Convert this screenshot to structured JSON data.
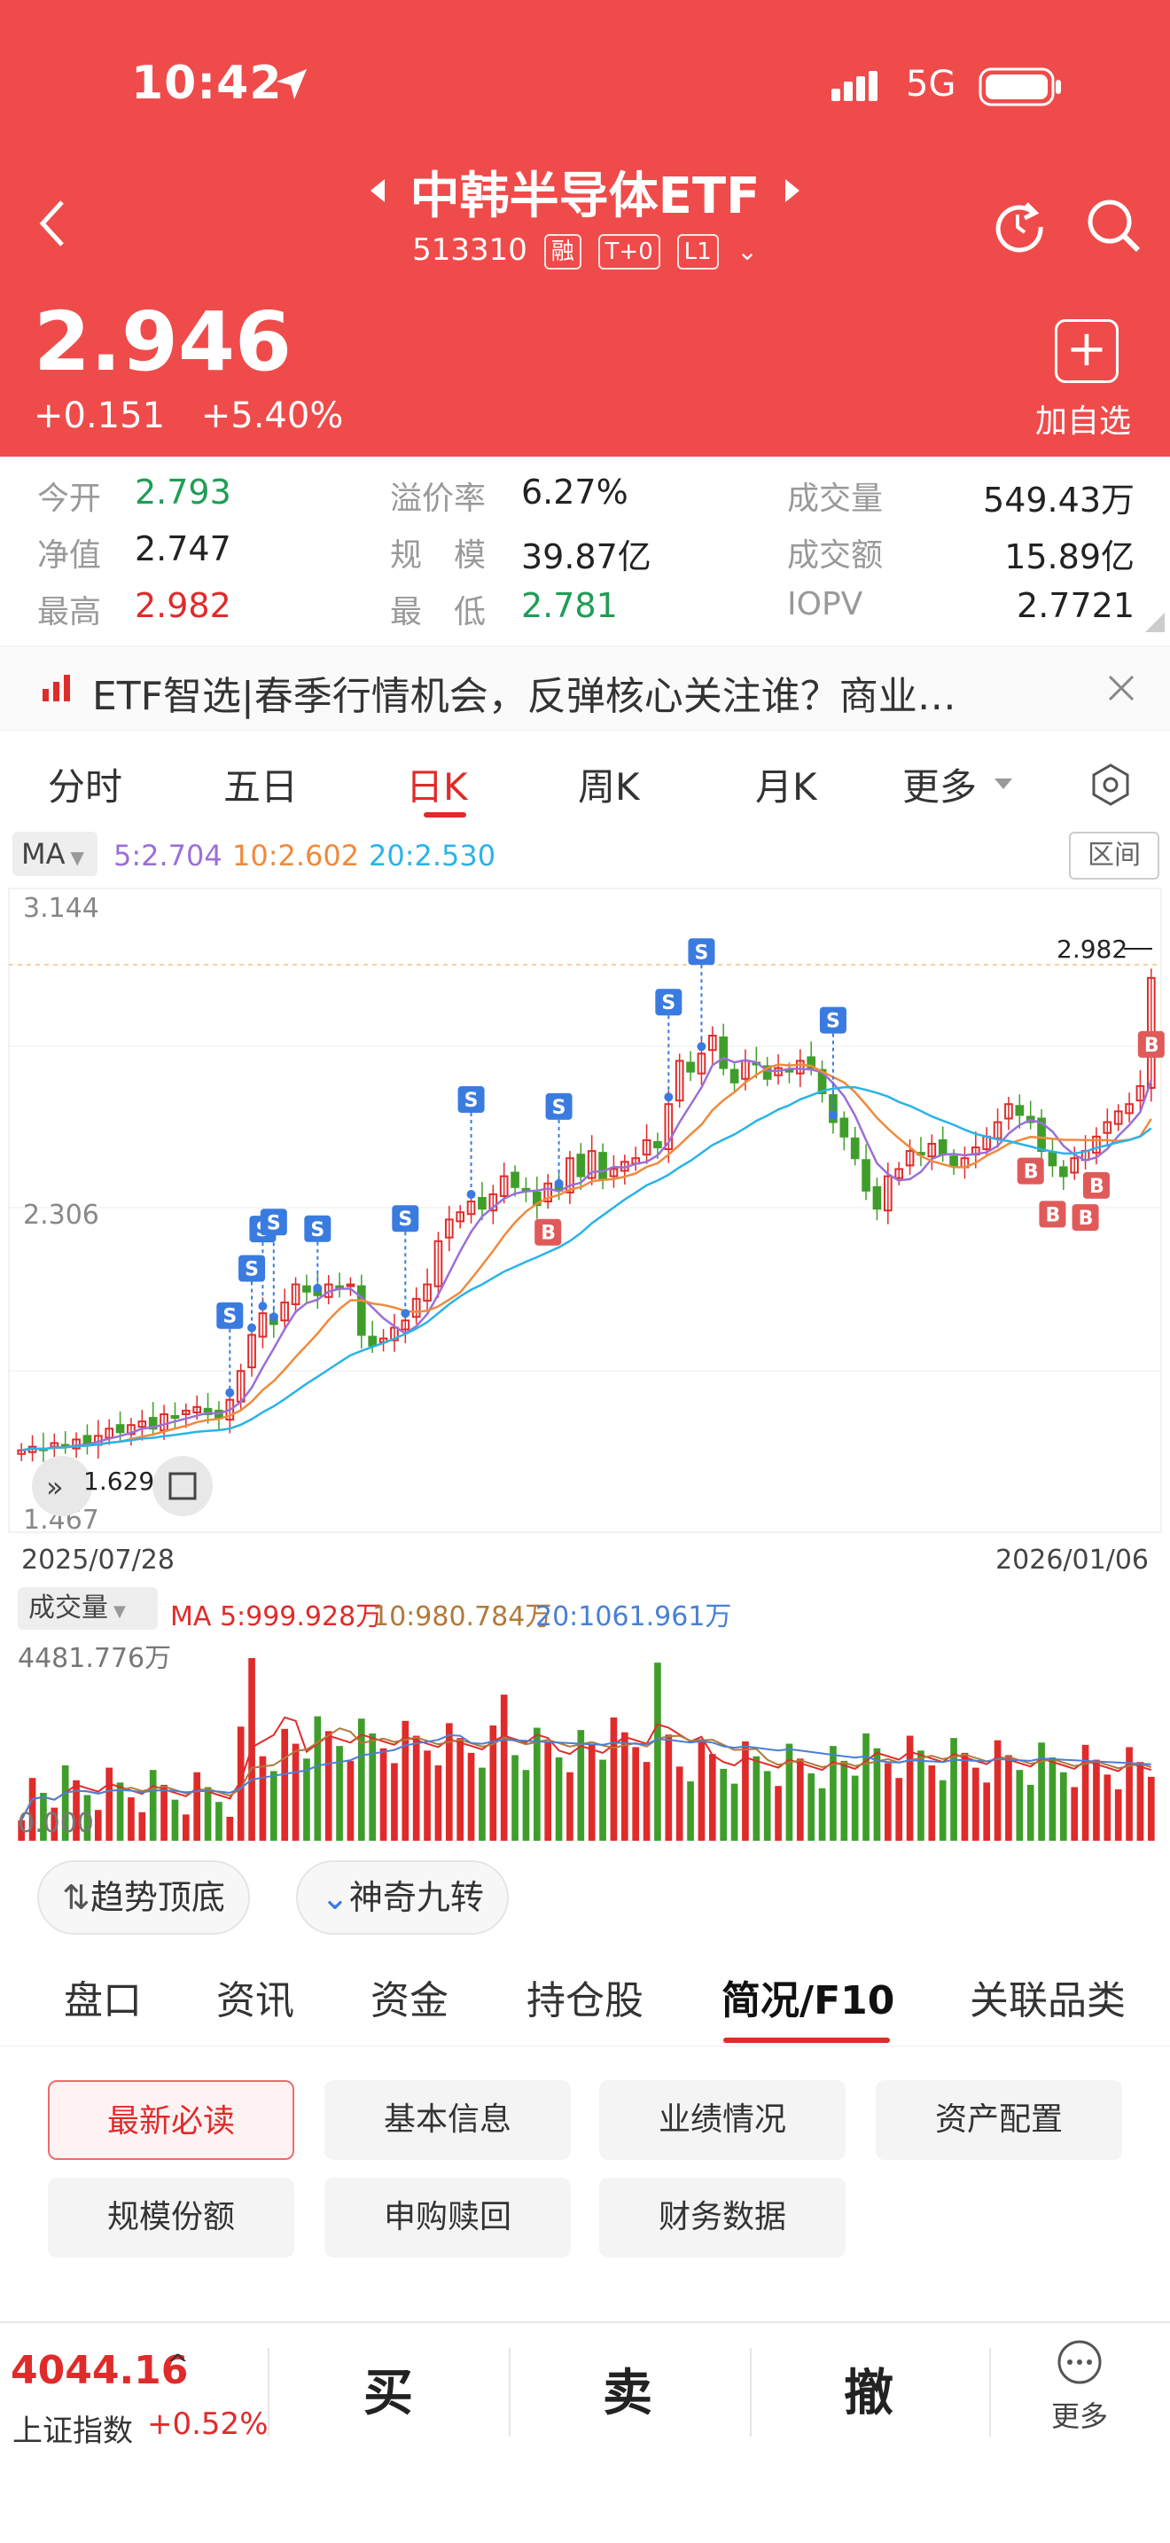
{
  "status": {
    "time": "10:42",
    "network": "5G"
  },
  "header": {
    "title": "中韩半导体ETF",
    "code": "513310",
    "tags": [
      "融",
      "T+0",
      "L1"
    ],
    "price": "2.946",
    "change": "+0.151",
    "change_pct": "+5.40%",
    "add_label": "加自选"
  },
  "stats": [
    {
      "label": "今开",
      "value": "2.793",
      "color": "green"
    },
    {
      "label": "溢价率",
      "value": "6.27%",
      "color": "dark"
    },
    {
      "label": "成交量",
      "value": "549.43万",
      "color": "dark"
    },
    {
      "label": "净值",
      "value": "2.747",
      "color": "dark"
    },
    {
      "label": "规　模",
      "value": "39.87亿",
      "color": "dark"
    },
    {
      "label": "成交额",
      "value": "15.89亿",
      "color": "dark"
    },
    {
      "label": "最高",
      "value": "2.982",
      "color": "red"
    },
    {
      "label": "最　低",
      "value": "2.781",
      "color": "green"
    },
    {
      "label": "IOPV",
      "value": "2.7721",
      "color": "dark"
    }
  ],
  "banner": {
    "text": "ETF智选|春季行情机会，反弹核心关注谁？商业…"
  },
  "chart_tabs": [
    "分时",
    "五日",
    "日K",
    "周K",
    "月K",
    "更多"
  ],
  "chart_tabs_active": "日K",
  "ma": {
    "label": "MA",
    "ma5": "5:2.704",
    "ma10": "10:2.602",
    "ma20": "20:2.530",
    "range_btn": "区间"
  },
  "chart_data": {
    "type": "candlestick",
    "y_high_label": "3.144",
    "y_mid_label": "2.306",
    "y_low_label": "1.467",
    "max_marker": "2.982",
    "min_marker": "1.629",
    "x_start": "2025/07/28",
    "x_end": "2026/01/06",
    "ylim": [
      1.467,
      3.144
    ],
    "closes": [
      1.64,
      1.65,
      1.64,
      1.66,
      1.65,
      1.67,
      1.66,
      1.68,
      1.7,
      1.69,
      1.71,
      1.72,
      1.7,
      1.74,
      1.73,
      1.75,
      1.76,
      1.74,
      1.73,
      1.78,
      1.86,
      1.96,
      2.02,
      1.99,
      2.05,
      2.1,
      2.08,
      2.07,
      2.1,
      2.09,
      2.1,
      1.96,
      1.93,
      1.95,
      1.98,
      2.0,
      2.06,
      2.1,
      2.22,
      2.28,
      2.3,
      2.33,
      2.31,
      2.35,
      2.4,
      2.37,
      2.36,
      2.32,
      2.38,
      2.36,
      2.45,
      2.4,
      2.47,
      2.39,
      2.42,
      2.44,
      2.45,
      2.5,
      2.48,
      2.6,
      2.72,
      2.69,
      2.74,
      2.79,
      2.7,
      2.66,
      2.72,
      2.71,
      2.67,
      2.7,
      2.69,
      2.72,
      2.7,
      2.63,
      2.55,
      2.51,
      2.45,
      2.36,
      2.31,
      2.4,
      2.42,
      2.47,
      2.46,
      2.49,
      2.46,
      2.43,
      2.45,
      2.48,
      2.51,
      2.55,
      2.6,
      2.57,
      2.55,
      2.47,
      2.43,
      2.4,
      2.45,
      2.47,
      2.51,
      2.55,
      2.58,
      2.6,
      2.65,
      2.95
    ],
    "volume": {
      "label": "成交量",
      "ma5": "MA 5:999.928万",
      "ma10": "10:980.784万",
      "ma20": "20:1061.961万",
      "max_label": "4481.776万",
      "min_label": "0.000"
    }
  },
  "chips": [
    "趋势顶底",
    "神奇九转"
  ],
  "sub_tabs": [
    "盘口",
    "资讯",
    "资金",
    "持仓股",
    "简况/F10",
    "关联品类"
  ],
  "sub_tabs_active": "简况/F10",
  "buttons": [
    "最新必读",
    "基本信息",
    "业绩情况",
    "资产配置",
    "规模份额",
    "申购赎回",
    "财务数据"
  ],
  "bottom": {
    "index_value": "4044.16",
    "index_name": "上证指数",
    "index_pct": "+0.52%",
    "buy": "买",
    "sell": "卖",
    "cancel": "撤",
    "more": "更多"
  },
  "colors": {
    "brand": "#ef4b4b",
    "up": "#e02b2b",
    "down": "#3f9e2a",
    "ma5": "#9b6fd8",
    "ma10": "#f08a3c",
    "ma20": "#2ab3e8"
  }
}
